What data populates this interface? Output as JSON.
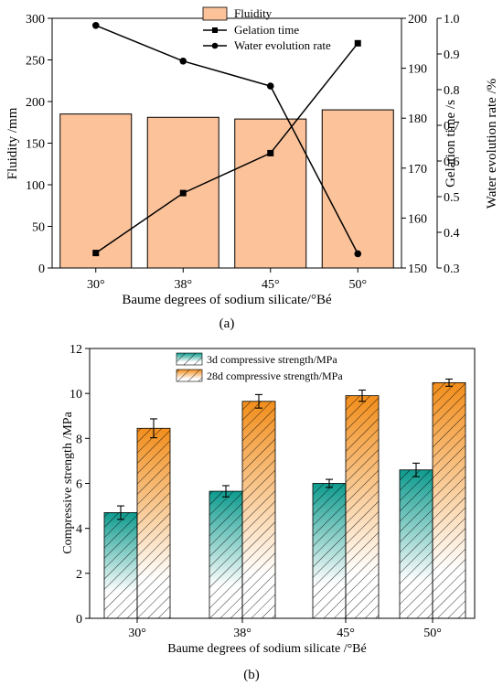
{
  "chart_data": [
    {
      "type": "bar",
      "panel_label": "(a)",
      "categories": [
        "30°",
        "38°",
        "45°",
        "50°"
      ],
      "xlabel": "Baume degrees of sodium silicate/°Bé",
      "ylabel": "Fluidity /mm",
      "y2label": "Gelation time /s",
      "y3label": "Water evolution rate /%",
      "ylim": [
        0,
        300
      ],
      "y2lim": [
        150,
        200
      ],
      "y3lim": [
        0.3,
        1.0
      ],
      "yticks": [
        0,
        50,
        100,
        150,
        200,
        250,
        300
      ],
      "y2ticks": [
        150,
        160,
        170,
        180,
        190,
        200
      ],
      "y3ticks": [
        0.3,
        0.4,
        0.5,
        0.6,
        0.7,
        0.8,
        0.9,
        1.0
      ],
      "legend_position": "top-center",
      "series": [
        {
          "name": "Fluidity",
          "kind": "bar",
          "axis": "left",
          "values": [
            185,
            181,
            179,
            190
          ],
          "color": "#FCC39B"
        },
        {
          "name": "Gelation time",
          "kind": "line",
          "marker": "square",
          "axis": "right",
          "values": [
            153,
            165,
            173,
            195
          ],
          "color": "#000000"
        },
        {
          "name": "Water evolution rate",
          "kind": "line",
          "marker": "circle",
          "axis": "far-right",
          "values": [
            0.98,
            0.88,
            0.81,
            0.34
          ],
          "color": "#000000"
        }
      ]
    },
    {
      "type": "bar",
      "panel_label": "(b)",
      "categories": [
        "30°",
        "38°",
        "45°",
        "50°"
      ],
      "xlabel": "Baume degrees of sodium silicate /°Bé",
      "ylabel": "Compressive strength /MPa",
      "ylim": [
        0,
        12
      ],
      "yticks": [
        0,
        2,
        4,
        6,
        8,
        10,
        12
      ],
      "legend_position": "top-center",
      "series": [
        {
          "name": "3d compressive strength/MPa",
          "values": [
            4.7,
            5.65,
            6.0,
            6.6
          ],
          "errors": [
            0.3,
            0.25,
            0.18,
            0.3
          ],
          "color": "#0E9B8E"
        },
        {
          "name": "28d compressive strength/MPa",
          "values": [
            8.45,
            9.65,
            9.9,
            10.48
          ],
          "errors": [
            0.42,
            0.3,
            0.25,
            0.16
          ],
          "color": "#F28E1C"
        }
      ]
    }
  ]
}
